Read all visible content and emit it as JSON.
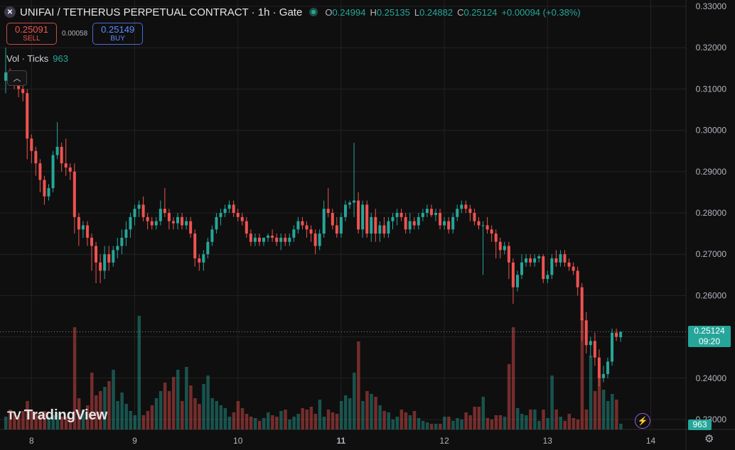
{
  "header": {
    "symbol_icon": "unifai-logo-icon",
    "title": "UNIFAI / TETHERUS PERPETUAL CONTRACT · 1h · Gate",
    "ohlc": {
      "o_label": "O",
      "o": "0.24994",
      "h_label": "H",
      "h": "0.25135",
      "l_label": "L",
      "l": "0.24882",
      "c_label": "C",
      "c": "0.25124",
      "change": "+0.00094 (+0.38%)"
    }
  },
  "trade": {
    "sell_price": "0.25091",
    "sell_label": "SELL",
    "spread": "0.00058",
    "buy_price": "0.25149",
    "buy_label": "BUY"
  },
  "volume_legend": {
    "label": "Vol · Ticks",
    "value": "963"
  },
  "last_price_tag": {
    "price": "0.25124",
    "countdown": "09:20"
  },
  "volume_tag": "963",
  "branding": {
    "logo_text": "TradingView",
    "logo_mark": "TV"
  },
  "colors": {
    "up": "#26a69a",
    "down": "#ef5350",
    "background": "#0f0f0f",
    "grid": "#222222"
  },
  "chart_data": {
    "type": "candlestick",
    "ylim": [
      0.23,
      0.33
    ],
    "y_ticks": [
      "0.33000",
      "0.32000",
      "0.31000",
      "0.30000",
      "0.29000",
      "0.28000",
      "0.27000",
      "0.26000",
      "0.25000",
      "0.24000",
      "0.23000"
    ],
    "x_ticks": [
      {
        "label": "8",
        "bar": 6
      },
      {
        "label": "9",
        "bar": 30
      },
      {
        "label": "10",
        "bar": 54
      },
      {
        "label": "11",
        "bar": 78
      },
      {
        "label": "12",
        "bar": 102
      },
      {
        "label": "13",
        "bar": 126
      },
      {
        "label": "14",
        "bar": 150
      }
    ],
    "x_tick_bold": "11",
    "last_price": 0.25124,
    "candles": [
      [
        0.312,
        0.32,
        0.309,
        0.314,
        9
      ],
      [
        0.314,
        0.315,
        0.311,
        0.3125,
        14
      ],
      [
        0.3125,
        0.313,
        0.31,
        0.311,
        12
      ],
      [
        0.311,
        0.3115,
        0.308,
        0.31,
        10
      ],
      [
        0.31,
        0.312,
        0.307,
        0.309,
        13
      ],
      [
        0.309,
        0.31,
        0.293,
        0.298,
        20
      ],
      [
        0.298,
        0.299,
        0.292,
        0.295,
        14
      ],
      [
        0.295,
        0.296,
        0.289,
        0.292,
        12
      ],
      [
        0.292,
        0.293,
        0.285,
        0.288,
        11
      ],
      [
        0.288,
        0.289,
        0.282,
        0.284,
        13
      ],
      [
        0.284,
        0.287,
        0.283,
        0.286,
        9
      ],
      [
        0.286,
        0.295,
        0.285,
        0.294,
        10
      ],
      [
        0.294,
        0.302,
        0.293,
        0.296,
        12
      ],
      [
        0.296,
        0.297,
        0.29,
        0.292,
        9
      ],
      [
        0.292,
        0.298,
        0.289,
        0.291,
        9
      ],
      [
        0.291,
        0.292,
        0.288,
        0.29,
        8
      ],
      [
        0.29,
        0.292,
        0.275,
        0.279,
        72
      ],
      [
        0.279,
        0.28,
        0.272,
        0.276,
        22
      ],
      [
        0.276,
        0.278,
        0.274,
        0.277,
        14
      ],
      [
        0.277,
        0.278,
        0.272,
        0.274,
        17
      ],
      [
        0.274,
        0.275,
        0.266,
        0.272,
        40
      ],
      [
        0.272,
        0.273,
        0.263,
        0.268,
        24
      ],
      [
        0.268,
        0.27,
        0.263,
        0.266,
        27
      ],
      [
        0.266,
        0.272,
        0.264,
        0.27,
        30
      ],
      [
        0.27,
        0.272,
        0.266,
        0.268,
        34
      ],
      [
        0.268,
        0.272,
        0.267,
        0.271,
        42
      ],
      [
        0.271,
        0.274,
        0.269,
        0.272,
        20
      ],
      [
        0.272,
        0.276,
        0.27,
        0.274,
        26
      ],
      [
        0.274,
        0.278,
        0.272,
        0.276,
        18
      ],
      [
        0.276,
        0.28,
        0.274,
        0.279,
        13
      ],
      [
        0.279,
        0.282,
        0.277,
        0.281,
        10
      ],
      [
        0.281,
        0.283,
        0.279,
        0.282,
        80
      ],
      [
        0.282,
        0.284,
        0.278,
        0.279,
        10
      ],
      [
        0.279,
        0.28,
        0.276,
        0.278,
        13
      ],
      [
        0.278,
        0.279,
        0.276,
        0.277,
        17
      ],
      [
        0.277,
        0.279,
        0.276,
        0.278,
        22
      ],
      [
        0.278,
        0.283,
        0.277,
        0.281,
        27
      ],
      [
        0.281,
        0.286,
        0.279,
        0.28,
        33
      ],
      [
        0.28,
        0.281,
        0.276,
        0.278,
        27
      ],
      [
        0.278,
        0.279,
        0.276,
        0.2775,
        37
      ],
      [
        0.2775,
        0.28,
        0.276,
        0.279,
        42
      ],
      [
        0.279,
        0.28,
        0.276,
        0.277,
        20
      ],
      [
        0.277,
        0.279,
        0.276,
        0.278,
        44
      ],
      [
        0.278,
        0.279,
        0.274,
        0.275,
        31
      ],
      [
        0.275,
        0.276,
        0.267,
        0.269,
        22
      ],
      [
        0.269,
        0.27,
        0.266,
        0.268,
        18
      ],
      [
        0.268,
        0.271,
        0.266,
        0.27,
        32
      ],
      [
        0.27,
        0.274,
        0.269,
        0.273,
        38
      ],
      [
        0.273,
        0.277,
        0.272,
        0.276,
        22
      ],
      [
        0.276,
        0.28,
        0.275,
        0.279,
        20
      ],
      [
        0.279,
        0.281,
        0.277,
        0.28,
        17
      ],
      [
        0.28,
        0.282,
        0.279,
        0.281,
        15
      ],
      [
        0.281,
        0.283,
        0.28,
        0.282,
        9
      ],
      [
        0.282,
        0.283,
        0.279,
        0.28,
        12
      ],
      [
        0.28,
        0.281,
        0.278,
        0.279,
        20
      ],
      [
        0.279,
        0.28,
        0.277,
        0.278,
        15
      ],
      [
        0.278,
        0.279,
        0.274,
        0.275,
        11
      ],
      [
        0.275,
        0.276,
        0.272,
        0.273,
        9
      ],
      [
        0.273,
        0.275,
        0.272,
        0.274,
        8
      ],
      [
        0.274,
        0.275,
        0.272,
        0.273,
        6
      ],
      [
        0.273,
        0.274,
        0.272,
        0.274,
        8
      ],
      [
        0.274,
        0.275,
        0.273,
        0.2745,
        12
      ],
      [
        0.2745,
        0.276,
        0.273,
        0.274,
        10
      ],
      [
        0.274,
        0.275,
        0.272,
        0.273,
        9
      ],
      [
        0.273,
        0.275,
        0.271,
        0.274,
        13
      ],
      [
        0.274,
        0.275,
        0.272,
        0.273,
        14
      ],
      [
        0.273,
        0.275,
        0.272,
        0.274,
        7
      ],
      [
        0.274,
        0.277,
        0.273,
        0.276,
        9
      ],
      [
        0.276,
        0.279,
        0.275,
        0.278,
        11
      ],
      [
        0.278,
        0.279,
        0.276,
        0.277,
        15
      ],
      [
        0.277,
        0.278,
        0.274,
        0.276,
        14
      ],
      [
        0.276,
        0.277,
        0.273,
        0.275,
        16
      ],
      [
        0.275,
        0.276,
        0.27,
        0.272,
        11
      ],
      [
        0.272,
        0.276,
        0.271,
        0.275,
        21
      ],
      [
        0.275,
        0.283,
        0.274,
        0.281,
        9
      ],
      [
        0.281,
        0.286,
        0.279,
        0.28,
        14
      ],
      [
        0.28,
        0.281,
        0.276,
        0.277,
        12
      ],
      [
        0.277,
        0.279,
        0.274,
        0.275,
        11
      ],
      [
        0.275,
        0.28,
        0.274,
        0.279,
        20
      ],
      [
        0.279,
        0.283,
        0.278,
        0.282,
        24
      ],
      [
        0.282,
        0.283,
        0.281,
        0.2825,
        22
      ],
      [
        0.2825,
        0.297,
        0.279,
        0.283,
        40
      ],
      [
        0.283,
        0.285,
        0.275,
        0.276,
        62
      ],
      [
        0.276,
        0.283,
        0.274,
        0.282,
        20
      ],
      [
        0.282,
        0.283,
        0.274,
        0.275,
        27
      ],
      [
        0.275,
        0.28,
        0.273,
        0.279,
        25
      ],
      [
        0.279,
        0.281,
        0.273,
        0.275,
        23
      ],
      [
        0.275,
        0.278,
        0.273,
        0.277,
        17
      ],
      [
        0.277,
        0.279,
        0.274,
        0.275,
        13
      ],
      [
        0.275,
        0.279,
        0.274,
        0.278,
        12
      ],
      [
        0.278,
        0.28,
        0.276,
        0.279,
        7
      ],
      [
        0.279,
        0.281,
        0.277,
        0.28,
        9
      ],
      [
        0.28,
        0.281,
        0.278,
        0.279,
        14
      ],
      [
        0.279,
        0.28,
        0.275,
        0.276,
        12
      ],
      [
        0.276,
        0.28,
        0.275,
        0.278,
        10
      ],
      [
        0.278,
        0.279,
        0.276,
        0.277,
        13
      ],
      [
        0.277,
        0.28,
        0.276,
        0.279,
        8
      ],
      [
        0.279,
        0.281,
        0.278,
        0.28,
        6
      ],
      [
        0.28,
        0.282,
        0.279,
        0.281,
        5
      ],
      [
        0.281,
        0.282,
        0.279,
        0.2795,
        4
      ],
      [
        0.2795,
        0.281,
        0.278,
        0.28,
        4
      ],
      [
        0.28,
        0.281,
        0.276,
        0.277,
        4
      ],
      [
        0.277,
        0.279,
        0.276,
        0.278,
        9
      ],
      [
        0.278,
        0.279,
        0.275,
        0.276,
        9
      ],
      [
        0.276,
        0.28,
        0.275,
        0.279,
        6
      ],
      [
        0.279,
        0.282,
        0.278,
        0.281,
        8
      ],
      [
        0.281,
        0.283,
        0.28,
        0.282,
        7
      ],
      [
        0.282,
        0.283,
        0.28,
        0.281,
        12
      ],
      [
        0.281,
        0.282,
        0.278,
        0.28,
        10
      ],
      [
        0.28,
        0.281,
        0.277,
        0.278,
        16
      ],
      [
        0.278,
        0.279,
        0.276,
        0.277,
        16
      ],
      [
        0.277,
        0.278,
        0.265,
        0.277,
        23
      ],
      [
        0.277,
        0.279,
        0.275,
        0.276,
        8
      ],
      [
        0.276,
        0.277,
        0.273,
        0.275,
        7
      ],
      [
        0.275,
        0.276,
        0.269,
        0.273,
        10
      ],
      [
        0.273,
        0.274,
        0.269,
        0.271,
        10
      ],
      [
        0.271,
        0.273,
        0.27,
        0.272,
        9
      ],
      [
        0.272,
        0.273,
        0.264,
        0.268,
        46
      ],
      [
        0.268,
        0.269,
        0.258,
        0.262,
        72
      ],
      [
        0.262,
        0.266,
        0.261,
        0.265,
        15
      ],
      [
        0.265,
        0.27,
        0.264,
        0.268,
        11
      ],
      [
        0.268,
        0.27,
        0.267,
        0.269,
        10
      ],
      [
        0.269,
        0.27,
        0.267,
        0.268,
        14
      ],
      [
        0.268,
        0.27,
        0.267,
        0.269,
        14
      ],
      [
        0.269,
        0.27,
        0.268,
        0.2695,
        6
      ],
      [
        0.2695,
        0.27,
        0.263,
        0.264,
        14
      ],
      [
        0.264,
        0.266,
        0.263,
        0.265,
        8
      ],
      [
        0.265,
        0.27,
        0.264,
        0.269,
        38
      ],
      [
        0.269,
        0.271,
        0.267,
        0.268,
        14
      ],
      [
        0.268,
        0.271,
        0.267,
        0.27,
        9
      ],
      [
        0.27,
        0.271,
        0.267,
        0.268,
        6
      ],
      [
        0.268,
        0.269,
        0.266,
        0.267,
        11
      ],
      [
        0.267,
        0.268,
        0.265,
        0.266,
        8
      ],
      [
        0.266,
        0.267,
        0.26,
        0.262,
        7
      ],
      [
        0.262,
        0.263,
        0.249,
        0.254,
        78
      ],
      [
        0.254,
        0.256,
        0.246,
        0.248,
        14
      ],
      [
        0.248,
        0.25,
        0.245,
        0.249,
        52
      ],
      [
        0.249,
        0.251,
        0.243,
        0.245,
        27
      ],
      [
        0.245,
        0.247,
        0.238,
        0.24,
        39
      ],
      [
        0.24,
        0.243,
        0.239,
        0.241,
        28
      ],
      [
        0.241,
        0.245,
        0.24,
        0.244,
        20
      ],
      [
        0.244,
        0.252,
        0.243,
        0.251,
        25
      ],
      [
        0.251,
        0.252,
        0.249,
        0.25,
        21
      ],
      [
        0.2499,
        0.2514,
        0.2488,
        0.2512,
        4
      ]
    ]
  }
}
